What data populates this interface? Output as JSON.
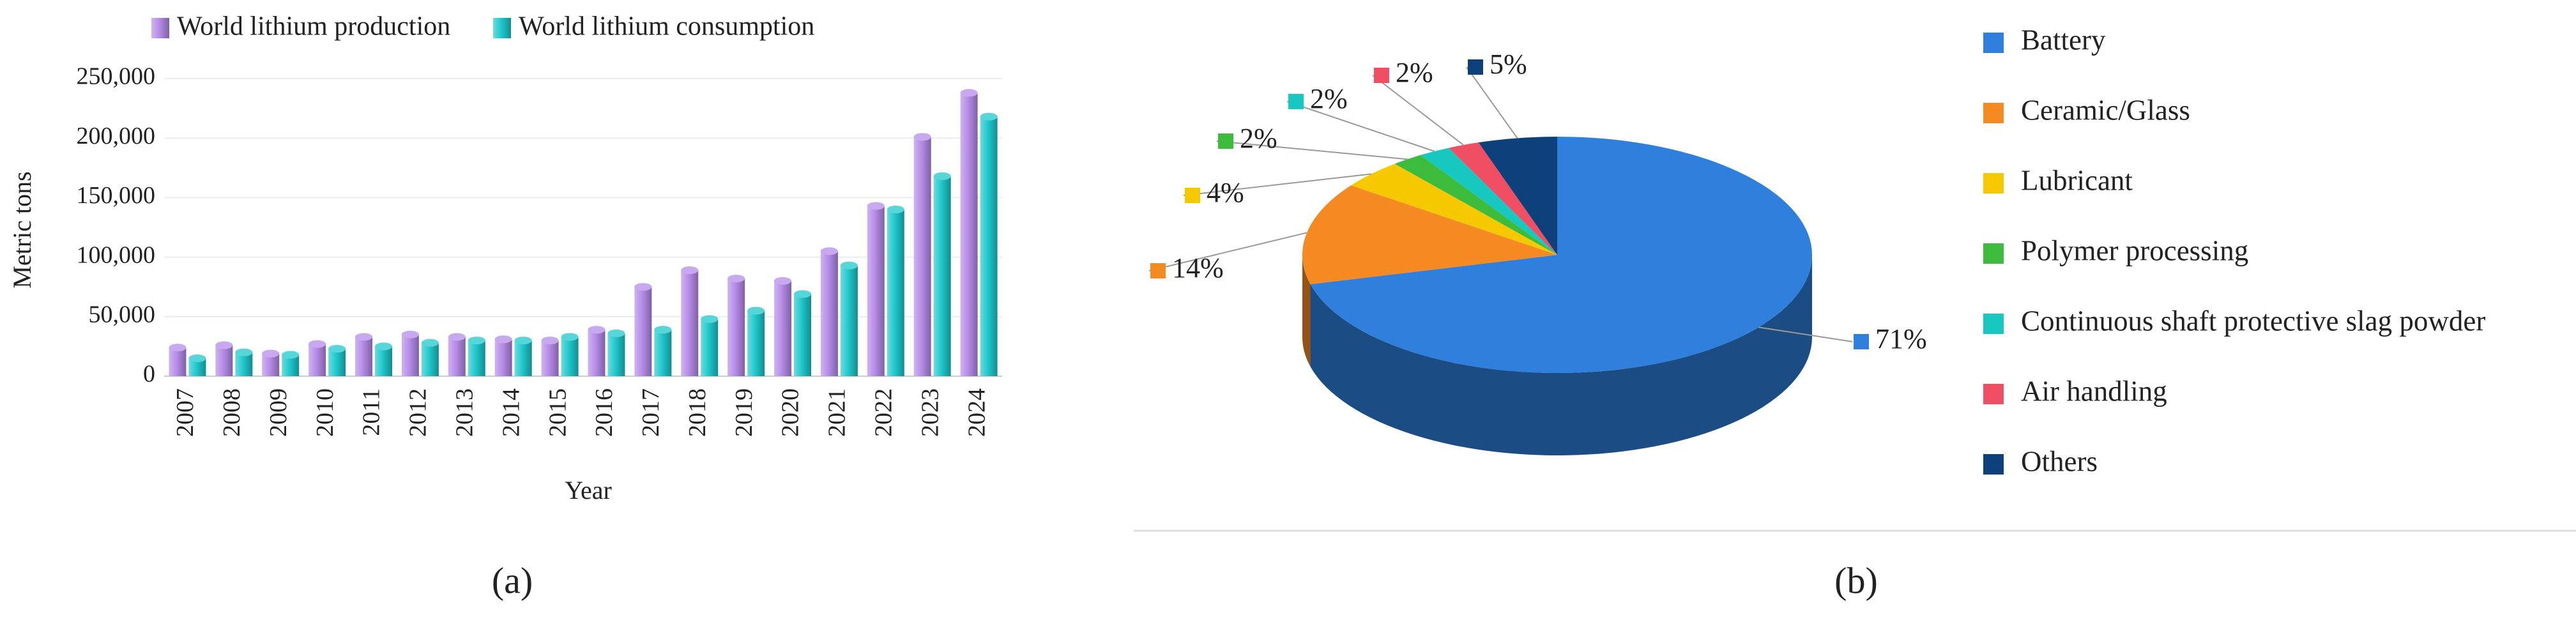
{
  "chart_data": [
    {
      "type": "bar",
      "caption": "(a)",
      "x_label": "Year",
      "y_label": "Metric tons",
      "categories": [
        "2007",
        "2008",
        "2009",
        "2010",
        "2011",
        "2012",
        "2013",
        "2014",
        "2015",
        "2016",
        "2017",
        "2018",
        "2019",
        "2020",
        "2021",
        "2022",
        "2023",
        "2024"
      ],
      "series": [
        {
          "name": "World lithium production",
          "color": "#b58be8",
          "values": [
            24000,
            26000,
            19000,
            27000,
            33000,
            35000,
            33000,
            31000,
            30000,
            39000,
            75000,
            89000,
            82000,
            80000,
            105000,
            143000,
            201000,
            238000
          ]
        },
        {
          "name": "World lithium consumption",
          "color": "#1ec8cc",
          "values": [
            15000,
            20000,
            18000,
            23000,
            25000,
            28000,
            30000,
            30000,
            33000,
            36000,
            39000,
            48000,
            55000,
            69000,
            93000,
            140000,
            168000,
            218000
          ]
        }
      ],
      "ylim": [
        0,
        250000
      ],
      "yticks": [
        0,
        {
          "value": 50000,
          "label": "50,000"
        },
        {
          "value": 100000,
          "label": "100,000"
        },
        {
          "value": 150000,
          "label": "150,000"
        },
        {
          "value": 200000,
          "label": "200,000"
        },
        {
          "value": 250000,
          "label": "250,000"
        }
      ],
      "grid": true,
      "legend": "top"
    },
    {
      "type": "pie",
      "caption": "(b)",
      "categories": [
        "Battery",
        "Ceramic/Glass",
        "Lubricant",
        "Polymer processing",
        "Continuous shaft protective slag powder",
        "Air handling",
        "Others"
      ],
      "values": [
        71,
        14,
        4,
        2,
        2,
        2,
        5
      ],
      "value_labels": [
        "71%",
        "14%",
        "4%",
        "2%",
        "2%",
        "2%",
        "5%"
      ],
      "colors": [
        "#2f7fdc",
        "#f68a22",
        "#f6c800",
        "#3dbb3d",
        "#16c8c0",
        "#f04e62",
        "#0e417c"
      ],
      "legend": "right"
    }
  ]
}
